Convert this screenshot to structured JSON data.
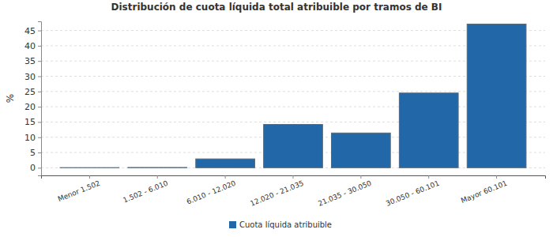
{
  "chart_data": {
    "type": "bar",
    "title": "Distribución de cuota líquida total atribuible por tramos de BI",
    "ylabel": "%",
    "categories": [
      "Menor 1.502",
      "1.502 - 6.010",
      "6.010 - 12.020",
      "12.020 - 21.035",
      "21.035 - 30.050",
      "30.050 - 60.101",
      "Mayor 60.101"
    ],
    "series": [
      {
        "name": "Cuota líquida atribuible",
        "color": "#2268a8",
        "values": [
          0.05,
          0.1,
          2.9,
          14.2,
          11.4,
          24.5,
          47.1
        ]
      }
    ],
    "ylim": [
      -2.5,
      48
    ],
    "yticks": [
      0,
      5,
      10,
      15,
      20,
      25,
      30,
      35,
      40,
      45
    ],
    "grid": true,
    "legend": "bottom"
  }
}
